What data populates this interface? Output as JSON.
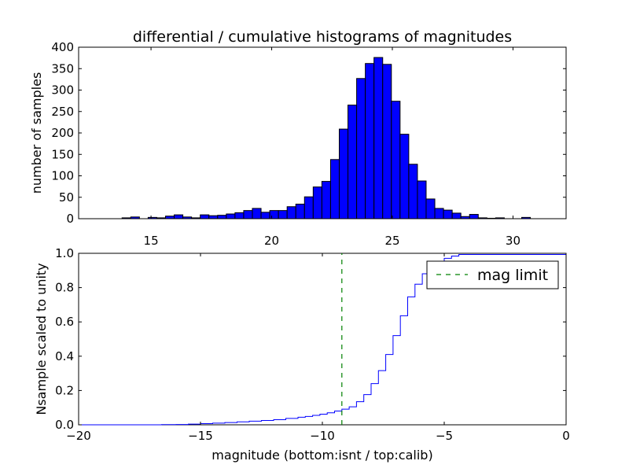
{
  "colors": {
    "hist_fill": "#0000ff",
    "hist_edge": "#000000",
    "cumulative_line": "#0000ff",
    "mag_limit_line": "#008000"
  },
  "chart_data": [
    {
      "type": "bar",
      "title": "differential / cumulative histograms of magnitudes",
      "xlabel": "",
      "ylabel": "number of samples",
      "xlim": [
        12.0,
        32.2
      ],
      "ylim": [
        0,
        400
      ],
      "x_ticks": [
        "15",
        "20",
        "25",
        "30"
      ],
      "y_ticks": [
        "0",
        "50",
        "100",
        "150",
        "200",
        "250",
        "300",
        "350",
        "400"
      ],
      "x_tick_position": "top of lower axes",
      "bin_width": 0.36,
      "bins_start": [
        13.8,
        14.16,
        14.52,
        14.88,
        15.24,
        15.6,
        15.96,
        16.32,
        16.68,
        17.04,
        17.4,
        17.76,
        18.12,
        18.48,
        18.84,
        19.2,
        19.56,
        19.92,
        20.28,
        20.64,
        21.0,
        21.36,
        21.72,
        22.08,
        22.44,
        22.8,
        23.16,
        23.52,
        23.88,
        24.24,
        24.6,
        24.96,
        25.32,
        25.68,
        26.04,
        26.4,
        26.76,
        27.12,
        27.48,
        27.84,
        28.2,
        28.56,
        28.92,
        29.28,
        29.64,
        30.0,
        30.36,
        30.72
      ],
      "values": [
        2,
        4,
        0,
        3,
        2,
        6,
        9,
        4,
        2,
        9,
        7,
        8,
        11,
        14,
        19,
        24,
        15,
        19,
        19,
        28,
        34,
        51,
        74,
        87,
        138,
        209,
        265,
        327,
        362,
        376,
        360,
        274,
        197,
        127,
        88,
        46,
        24,
        20,
        13,
        5,
        10,
        2,
        1,
        2,
        0,
        0,
        3,
        0
      ]
    },
    {
      "type": "line",
      "title": "",
      "xlabel": "magnitude (bottom:isnt / top:calib)",
      "ylabel": "Nsample scaled to unity",
      "xlim": [
        -20,
        0
      ],
      "ylim": [
        0.0,
        1.0
      ],
      "x_ticks": [
        "−20",
        "−15",
        "−10",
        "−5",
        "0"
      ],
      "y_ticks": [
        "0.0",
        "0.2",
        "0.4",
        "0.6",
        "0.8",
        "1.0"
      ],
      "step": true,
      "series": [
        {
          "name": "",
          "x": [
            -20.0,
            -17.3,
            -16.6,
            -16.0,
            -15.5,
            -15.0,
            -14.5,
            -14.0,
            -13.5,
            -13.0,
            -12.5,
            -12.0,
            -11.5,
            -11.0,
            -10.7,
            -10.4,
            -10.1,
            -9.8,
            -9.5,
            -9.2,
            -8.9,
            -8.6,
            -8.3,
            -8.0,
            -7.7,
            -7.4,
            -7.1,
            -6.8,
            -6.5,
            -6.2,
            -5.9,
            -5.6,
            -5.3,
            -5.0,
            -4.7,
            -4.4,
            0.0
          ],
          "y": [
            0.0,
            0.0,
            0.001,
            0.002,
            0.004,
            0.007,
            0.01,
            0.013,
            0.017,
            0.021,
            0.025,
            0.03,
            0.037,
            0.044,
            0.049,
            0.055,
            0.062,
            0.07,
            0.08,
            0.091,
            0.105,
            0.135,
            0.176,
            0.24,
            0.316,
            0.41,
            0.52,
            0.636,
            0.746,
            0.82,
            0.881,
            0.922,
            0.952,
            0.971,
            0.984,
            0.993,
            1.0
          ]
        },
        {
          "name": "mag limit",
          "x": [
            -9.2,
            -9.2
          ],
          "y": [
            0.0,
            1.0
          ]
        }
      ],
      "legend": [
        "mag limit"
      ],
      "legend_position": "top-right",
      "grid": false
    }
  ]
}
